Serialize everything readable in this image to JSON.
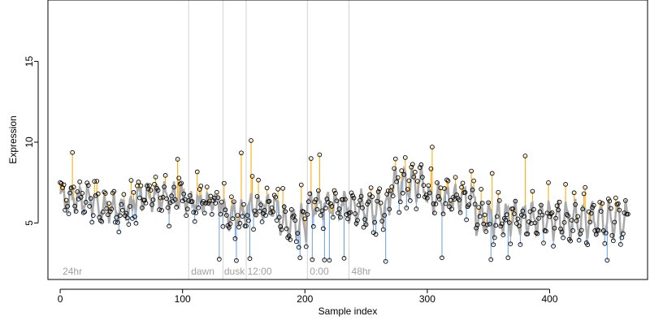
{
  "chart_data": {
    "type": "scatter",
    "xlabel": "Sample index",
    "ylabel": "Expression",
    "xlim": [
      -10,
      480
    ],
    "ylim": [
      1.5,
      18.8
    ],
    "x_ticks": [
      0,
      100,
      200,
      300,
      400
    ],
    "y_ticks": [
      5,
      10,
      15
    ],
    "n_samples": 465,
    "condition_boundaries": [
      105,
      133,
      152,
      202,
      236
    ],
    "condition_labels": [
      {
        "label": "24hr",
        "x": 2
      },
      {
        "label": "dawn",
        "x": 107
      },
      {
        "label": "dusk",
        "x": 134
      },
      {
        "label": "12:00",
        "x": 153
      },
      {
        "label": "0:00",
        "x": 204
      },
      {
        "label": "48hr",
        "x": 238
      }
    ],
    "segments": [
      {
        "range": [
          0,
          30
        ],
        "mean": 6.5,
        "amp": 0.7
      },
      {
        "range": [
          30,
          60
        ],
        "mean": 5.9,
        "amp": 0.6
      },
      {
        "range": [
          60,
          105
        ],
        "mean": 6.6,
        "amp": 0.7
      },
      {
        "range": [
          105,
          133
        ],
        "mean": 6.3,
        "amp": 0.4
      },
      {
        "range": [
          133,
          152
        ],
        "mean": 5.5,
        "amp": 0.7
      },
      {
        "range": [
          152,
          180
        ],
        "mean": 6.0,
        "amp": 0.6
      },
      {
        "range": [
          180,
          202
        ],
        "mean": 5.0,
        "amp": 0.9
      },
      {
        "range": [
          202,
          236
        ],
        "mean": 6.1,
        "amp": 0.7
      },
      {
        "range": [
          236,
          270
        ],
        "mean": 5.9,
        "amp": 0.9
      },
      {
        "range": [
          270,
          300
        ],
        "mean": 7.4,
        "amp": 0.9
      },
      {
        "range": [
          300,
          340
        ],
        "mean": 6.5,
        "amp": 0.7
      },
      {
        "range": [
          340,
          400
        ],
        "mean": 5.3,
        "amp": 0.9
      },
      {
        "range": [
          400,
          465
        ],
        "mean": 5.2,
        "amp": 1.0
      }
    ],
    "colors": {
      "above": "#FFA500",
      "below": "#6A9FE0",
      "smooth": "#AAAAAA",
      "points": "#000000",
      "grid": "#D3D3D3",
      "condition_text": "#A0A0A0"
    }
  }
}
